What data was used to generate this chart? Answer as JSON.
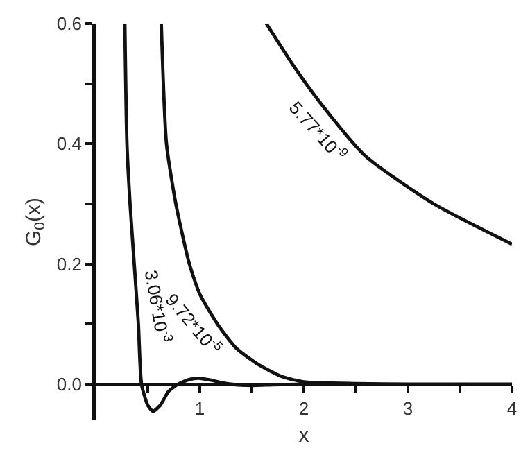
{
  "chart_data": {
    "type": "line",
    "xlabel": "x",
    "ylabel": "G$_{0}$(x)",
    "xlim": [
      0,
      4
    ],
    "ylim": [
      -0.06,
      0.6
    ],
    "xticks": [
      {
        "value": 0.5,
        "label": null
      },
      1,
      {
        "value": 1.5,
        "label": null
      },
      2,
      {
        "value": 2.5,
        "label": null
      },
      3,
      {
        "value": 3.5,
        "label": null
      },
      4
    ],
    "yticks": [
      {
        "value": 0,
        "label": "0.0"
      },
      {
        "value": 0.1,
        "label": null
      },
      0.2,
      {
        "value": 0.3,
        "label": null
      },
      0.4,
      {
        "value": 0.5,
        "label": null
      },
      0.6
    ],
    "grid": false,
    "legend": false,
    "marker": "none",
    "line_style": "solid",
    "series": [
      {
        "name": "3.06*10$^{-3}$",
        "color": "#111111",
        "x": [
          0.28,
          0.3,
          0.33,
          0.37,
          0.41,
          0.44,
          0.5,
          0.55,
          0.62,
          0.7,
          0.79,
          0.9,
          0.99,
          1.1,
          1.2,
          1.3,
          1.5,
          1.7,
          2.0,
          2.5
        ],
        "values": [
          0.6,
          0.4,
          0.3,
          0.2,
          0.1,
          0.0,
          -0.035,
          -0.045,
          -0.035,
          -0.012,
          0.0,
          0.008,
          0.01,
          0.007,
          0.003,
          0.0,
          -0.002,
          -0.001,
          0.0,
          0.0
        ]
      },
      {
        "name": "9.72*10$^{-5}$",
        "color": "#111111",
        "x": [
          0.63,
          0.68,
          0.77,
          0.9,
          1.0,
          1.17,
          1.35,
          1.57,
          1.8,
          2.0,
          2.5,
          3.0,
          4.0
        ],
        "values": [
          0.6,
          0.4,
          0.3,
          0.2,
          0.15,
          0.1,
          0.06,
          0.032,
          0.012,
          0.004,
          0.001,
          0.0,
          0.0
        ]
      },
      {
        "name": "5.77*10$^{-9}$",
        "color": "#111111",
        "x": [
          1.64,
          1.9,
          2.15,
          2.59,
          3.25,
          4.0
        ],
        "values": [
          0.6,
          0.53,
          0.47,
          0.38,
          0.3,
          0.233
        ]
      }
    ]
  }
}
